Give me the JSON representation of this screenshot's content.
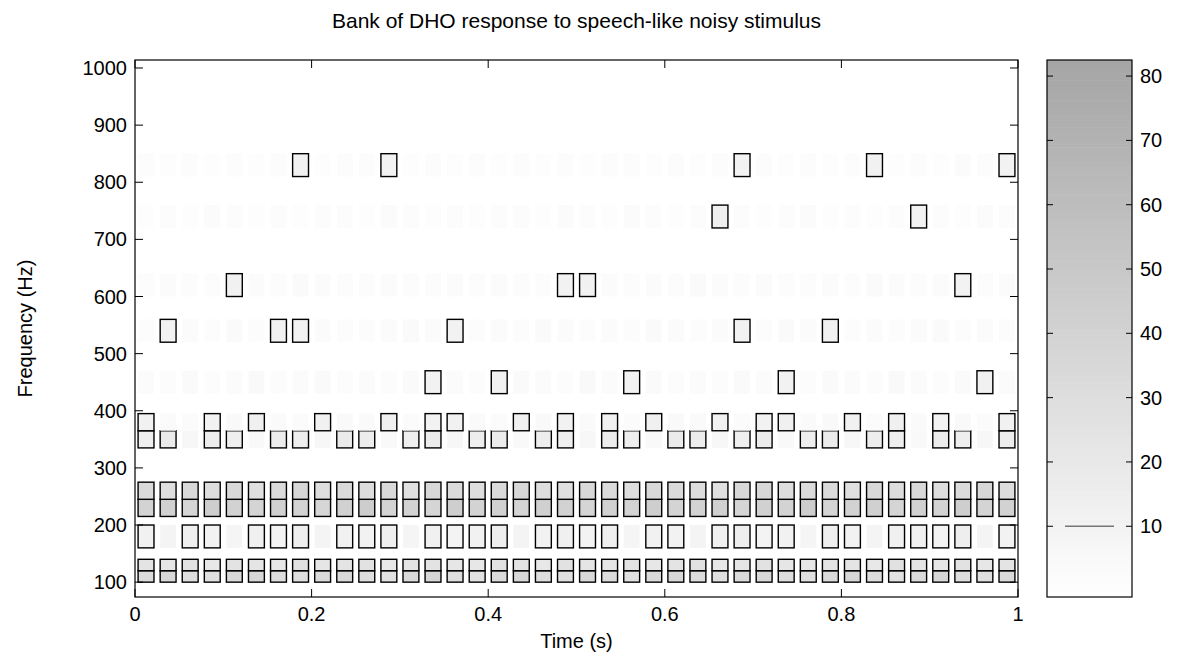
{
  "chart_data": {
    "type": "contour",
    "title": "Bank of DHO response to speech-like noisy stimulus",
    "x_label": "Time (s)",
    "y_label": "Frequency (Hz)",
    "x": [
      0.0125,
      0.0375,
      0.0625,
      0.0875,
      0.1125,
      0.1375,
      0.1625,
      0.1875,
      0.2125,
      0.2375,
      0.2625,
      0.2875,
      0.3125,
      0.3375,
      0.3625,
      0.3875,
      0.4125,
      0.4375,
      0.4625,
      0.4875,
      0.5125,
      0.5375,
      0.5625,
      0.5875,
      0.6125,
      0.6375,
      0.6625,
      0.6875,
      0.7125,
      0.7375,
      0.7625,
      0.7875,
      0.8125,
      0.8375,
      0.8625,
      0.8875,
      0.9125,
      0.9375,
      0.9625,
      0.9875
    ],
    "y": [
      110,
      130,
      180,
      230,
      260,
      350,
      380,
      450,
      540,
      620,
      740,
      830
    ],
    "values": [
      [
        32,
        35,
        30,
        28,
        34,
        36,
        31,
        29,
        33,
        35,
        30,
        27,
        34,
        37,
        31,
        28,
        33,
        36,
        30,
        29,
        35,
        32,
        28,
        34,
        36,
        31,
        29,
        33,
        35,
        30,
        28,
        34,
        37,
        31,
        27,
        33,
        36,
        30,
        29,
        34
      ],
      [
        24,
        22,
        26,
        20,
        25,
        23,
        21,
        27,
        22,
        24,
        26,
        20,
        23,
        25,
        22,
        21,
        27,
        24,
        20,
        26,
        23,
        22,
        25,
        21,
        24,
        27,
        20,
        23,
        26,
        22,
        21,
        25,
        24,
        20,
        27,
        23,
        22,
        26,
        21,
        24
      ],
      [
        12,
        9,
        14,
        11,
        8,
        13,
        10,
        15,
        9,
        12,
        11,
        14,
        8,
        13,
        10,
        12,
        15,
        9,
        11,
        13,
        10,
        14,
        8,
        12,
        11,
        9,
        13,
        15,
        10,
        12,
        8,
        14,
        11,
        9,
        13,
        12,
        10,
        15,
        9,
        11
      ],
      [
        40,
        42,
        38,
        44,
        41,
        39,
        43,
        40,
        37,
        42,
        45,
        39,
        41,
        38,
        44,
        40,
        42,
        39,
        43,
        41,
        38,
        42,
        40,
        44,
        39,
        41,
        43,
        38,
        42,
        40,
        45,
        39,
        41,
        43,
        38,
        42,
        40,
        44,
        39,
        41
      ],
      [
        33,
        30,
        35,
        31,
        34,
        29,
        32,
        36,
        30,
        33,
        31,
        34,
        28,
        35,
        32,
        30,
        33,
        36,
        31,
        29,
        34,
        32,
        30,
        35,
        33,
        31,
        28,
        34,
        36,
        30,
        32,
        33,
        29,
        35,
        31,
        34,
        30,
        32,
        36,
        31
      ],
      [
        15,
        18,
        6,
        16,
        14,
        5,
        17,
        15,
        6,
        18,
        16,
        5,
        14,
        17,
        6,
        15,
        18,
        5,
        16,
        14,
        6,
        17,
        15,
        5,
        18,
        16,
        6,
        14,
        17,
        5,
        15,
        18,
        6,
        16,
        14,
        5,
        17,
        15,
        6,
        16
      ],
      [
        12,
        4,
        3,
        11,
        5,
        13,
        4,
        3,
        12,
        5,
        4,
        13,
        3,
        11,
        12,
        4,
        3,
        13,
        5,
        11,
        4,
        12,
        3,
        13,
        5,
        4,
        12,
        3,
        11,
        13,
        4,
        5,
        12,
        3,
        13,
        4,
        11,
        5,
        3,
        12
      ],
      [
        3,
        2,
        4,
        2,
        3,
        5,
        2,
        3,
        4,
        2,
        3,
        2,
        4,
        11,
        3,
        2,
        12,
        4,
        3,
        2,
        5,
        3,
        11,
        4,
        2,
        3,
        2,
        4,
        3,
        11,
        2,
        4,
        3,
        2,
        5,
        3,
        2,
        4,
        12,
        3
      ],
      [
        2,
        11,
        3,
        2,
        4,
        2,
        12,
        11,
        3,
        2,
        2,
        3,
        4,
        3,
        11,
        2,
        3,
        2,
        4,
        3,
        2,
        3,
        2,
        4,
        3,
        2,
        3,
        11,
        2,
        4,
        3,
        12,
        2,
        3,
        2,
        3,
        4,
        2,
        3,
        2
      ],
      [
        2,
        3,
        2,
        2,
        12,
        3,
        2,
        4,
        3,
        2,
        2,
        3,
        2,
        2,
        3,
        2,
        3,
        2,
        2,
        11,
        12,
        3,
        2,
        3,
        2,
        4,
        3,
        2,
        3,
        2,
        2,
        3,
        2,
        4,
        3,
        2,
        3,
        11,
        2,
        3
      ],
      [
        1,
        2,
        1,
        3,
        2,
        1,
        2,
        1,
        2,
        2,
        1,
        3,
        2,
        1,
        2,
        1,
        2,
        2,
        1,
        3,
        2,
        1,
        3,
        2,
        1,
        2,
        14,
        2,
        1,
        2,
        3,
        1,
        2,
        1,
        2,
        11,
        2,
        1,
        3,
        2
      ],
      [
        2,
        1,
        2,
        1,
        2,
        1,
        2,
        12,
        1,
        2,
        2,
        11,
        1,
        2,
        1,
        2,
        1,
        2,
        1,
        2,
        1,
        2,
        2,
        1,
        2,
        1,
        2,
        11,
        2,
        1,
        2,
        1,
        2,
        12,
        1,
        2,
        1,
        3,
        2,
        11
      ]
    ],
    "xlim": [
      0,
      1
    ],
    "ylim": [
      74,
      1014
    ],
    "xticks": [
      0,
      0.2,
      0.4,
      0.6,
      0.8,
      1
    ],
    "yticks": [
      100,
      200,
      300,
      400,
      500,
      600,
      700,
      800,
      900,
      1000
    ],
    "colorbar": {
      "range": [
        -1,
        82.5
      ],
      "ticks": [
        10,
        20,
        30,
        40,
        50,
        60,
        70,
        80
      ],
      "levels": [
        10
      ]
    }
  }
}
